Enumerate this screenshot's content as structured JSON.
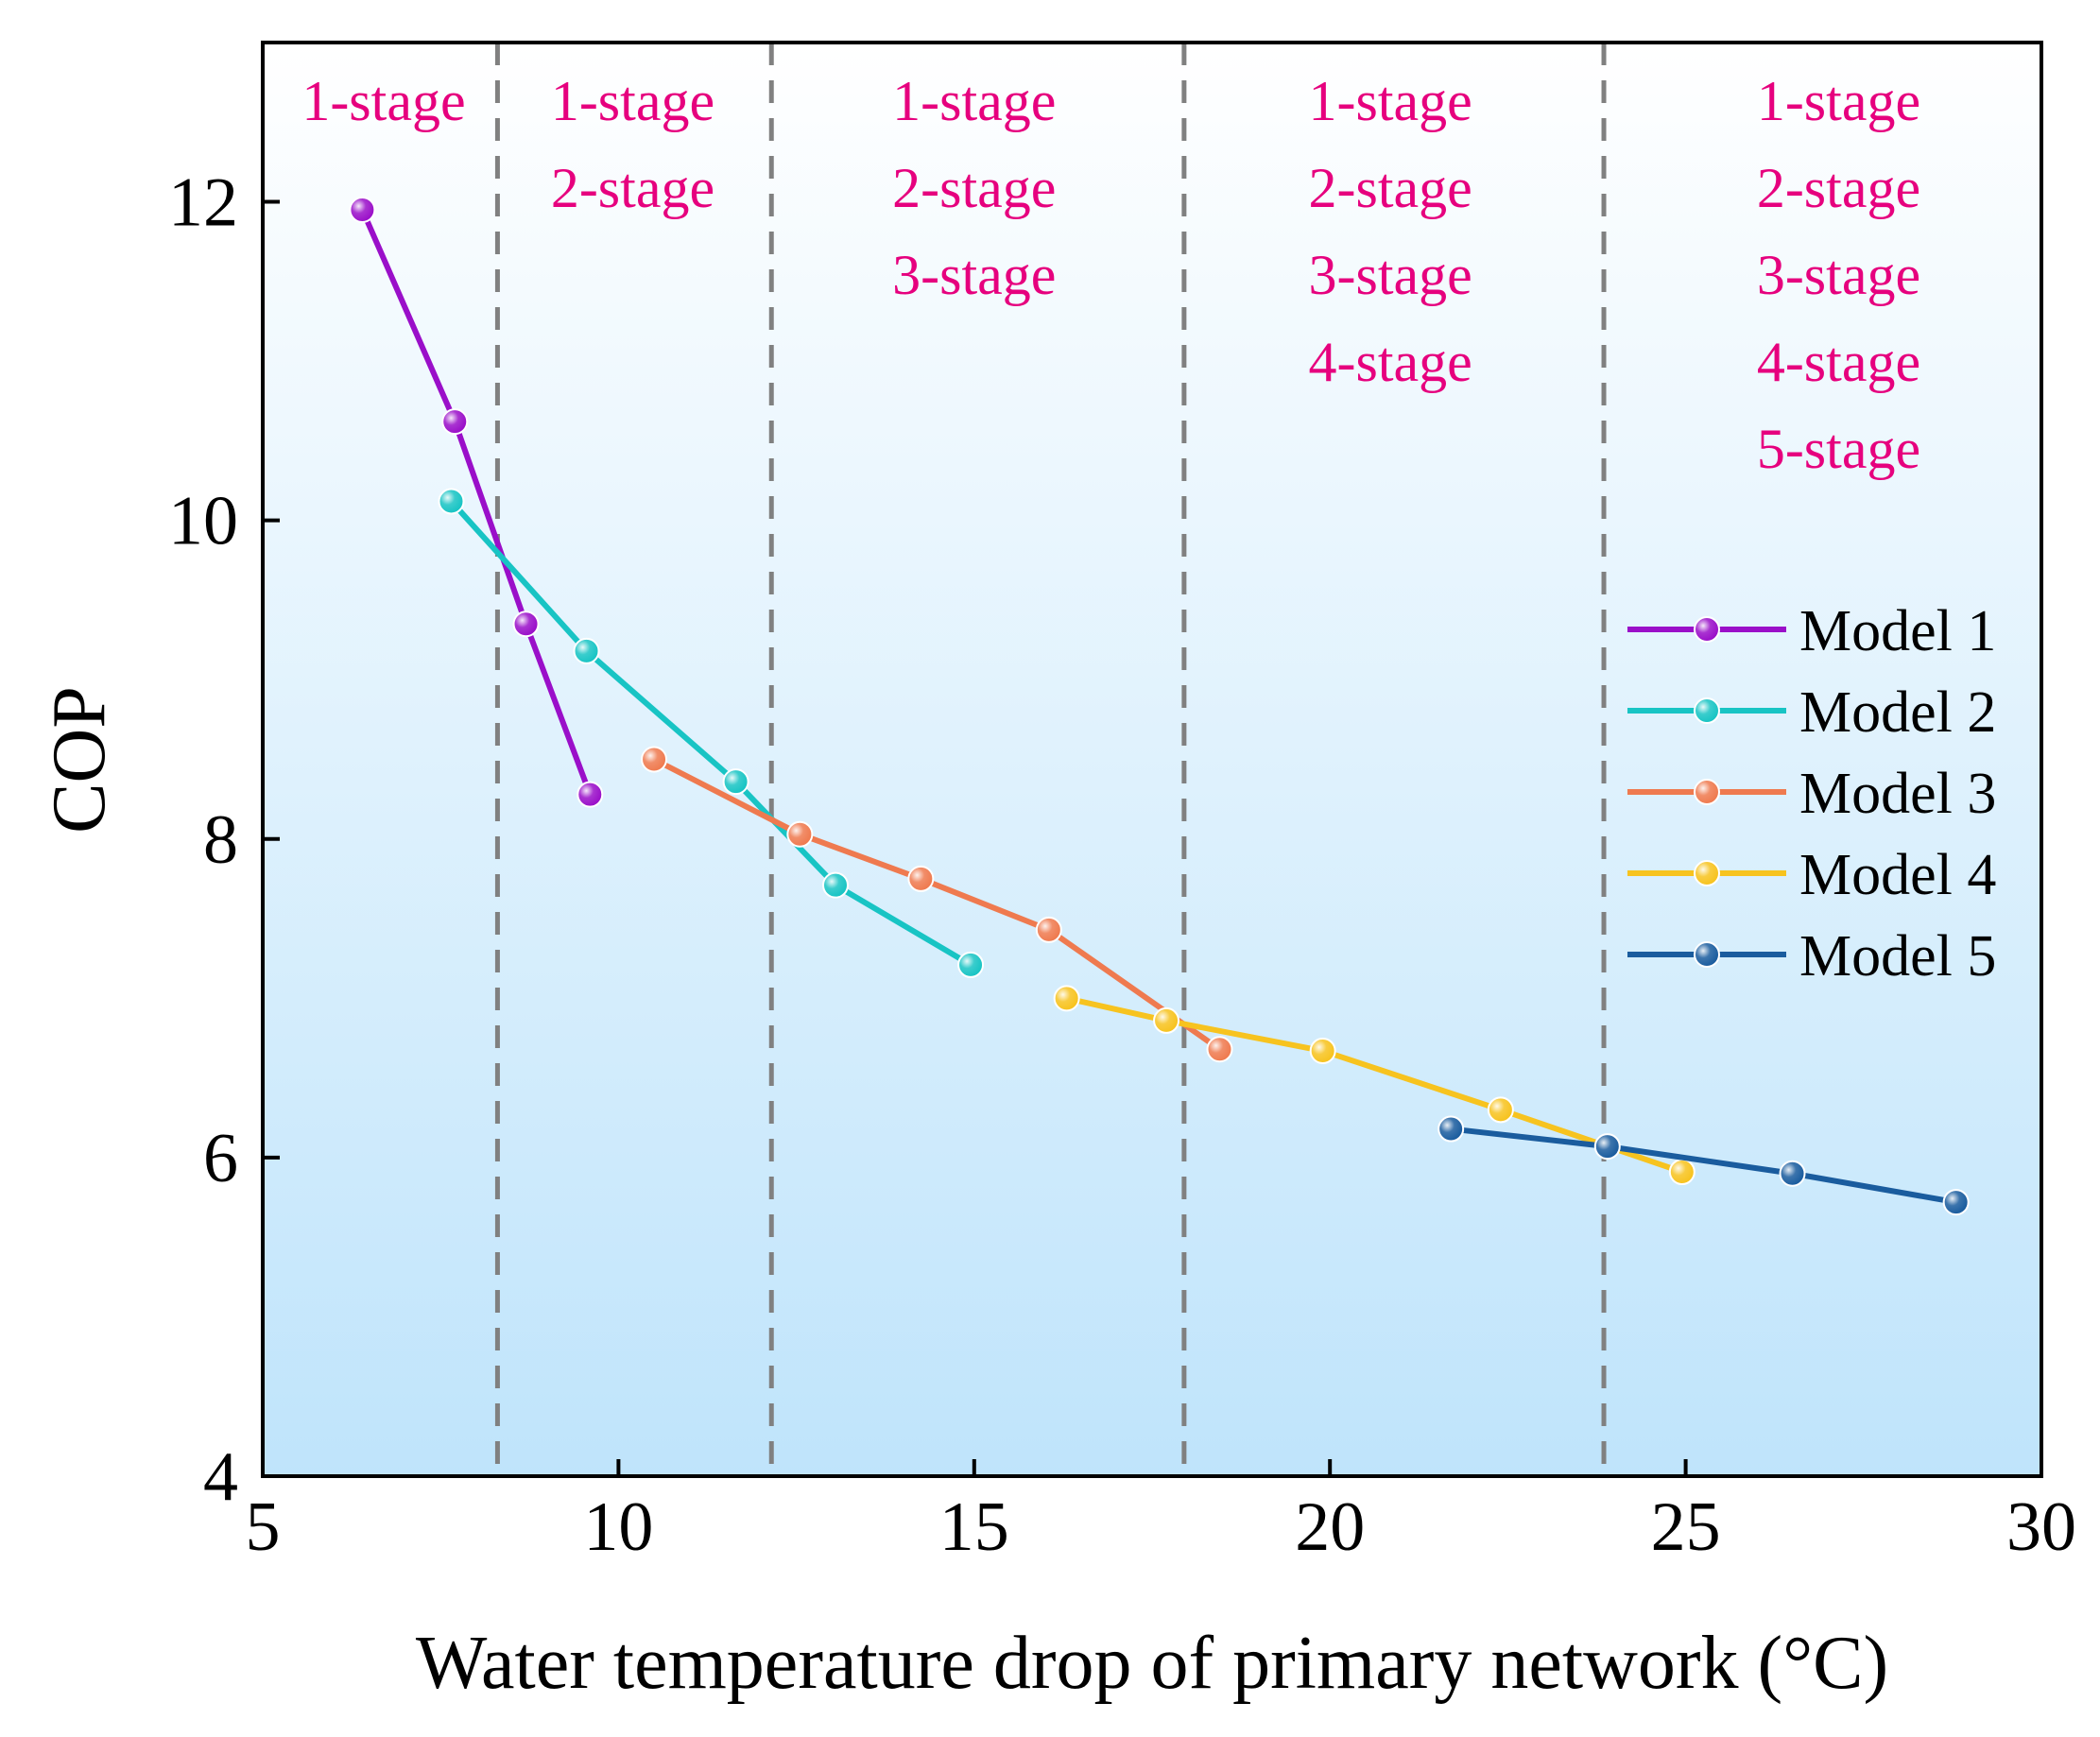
{
  "chart_data": {
    "type": "line",
    "xlabel": "Water temperature drop of primary network (°C)",
    "ylabel": "COP",
    "xlim": [
      5,
      30
    ],
    "ylim": [
      4,
      13
    ],
    "xticks": [
      5,
      10,
      15,
      20,
      25,
      30
    ],
    "yticks": [
      4,
      6,
      8,
      10,
      12
    ],
    "grid": false,
    "legend_position": "right",
    "background": "vertical gradient from white (top) to light blue (bottom)",
    "dividers_x": [
      8.3,
      12.15,
      17.95,
      23.85
    ],
    "zones": [
      {
        "center_x": 6.7,
        "labels": [
          "1-stage"
        ]
      },
      {
        "center_x": 10.2,
        "labels": [
          "1-stage",
          "2-stage"
        ]
      },
      {
        "center_x": 15.0,
        "labels": [
          "1-stage",
          "2-stage",
          "3-stage"
        ]
      },
      {
        "center_x": 20.85,
        "labels": [
          "1-stage",
          "2-stage",
          "3-stage",
          "4-stage"
        ]
      },
      {
        "center_x": 27.15,
        "labels": [
          "1-stage",
          "2-stage",
          "3-stage",
          "4-stage",
          "5-stage"
        ]
      }
    ],
    "series": [
      {
        "name": "Model 1",
        "color": "#9a0fc9",
        "points": [
          [
            6.4,
            11.95
          ],
          [
            7.7,
            10.62
          ],
          [
            8.7,
            9.35
          ],
          [
            9.6,
            8.28
          ]
        ]
      },
      {
        "name": "Model 2",
        "color": "#18c4c4",
        "points": [
          [
            7.65,
            10.12
          ],
          [
            9.55,
            9.18
          ],
          [
            11.65,
            8.36
          ],
          [
            13.05,
            7.71
          ],
          [
            14.95,
            7.21
          ]
        ]
      },
      {
        "name": "Model 3",
        "color": "#ef7a4f",
        "points": [
          [
            10.5,
            8.5
          ],
          [
            12.55,
            8.03
          ],
          [
            14.25,
            7.75
          ],
          [
            16.05,
            7.43
          ],
          [
            18.45,
            6.68
          ]
        ]
      },
      {
        "name": "Model 4",
        "color": "#f7c31f",
        "points": [
          [
            16.3,
            7.0
          ],
          [
            17.7,
            6.86
          ],
          [
            19.9,
            6.67
          ],
          [
            22.4,
            6.3
          ],
          [
            24.95,
            5.91
          ]
        ]
      },
      {
        "name": "Model 5",
        "color": "#1a5c9e",
        "points": [
          [
            21.7,
            6.18
          ],
          [
            23.9,
            6.07
          ],
          [
            26.5,
            5.9
          ],
          [
            28.8,
            5.72
          ]
        ]
      }
    ]
  }
}
